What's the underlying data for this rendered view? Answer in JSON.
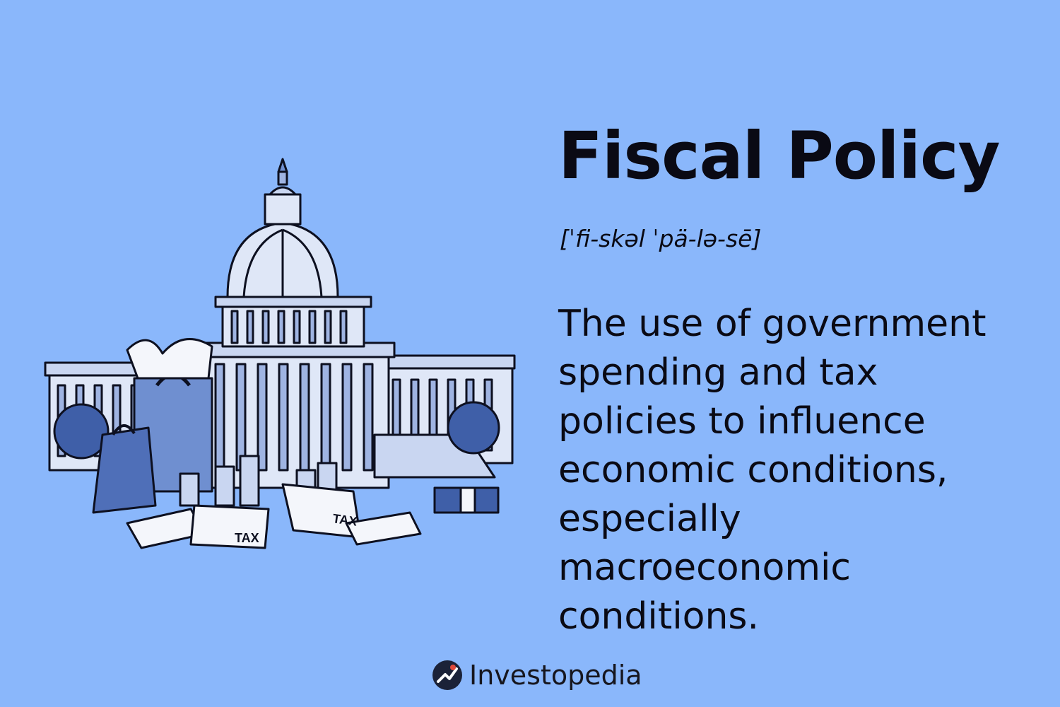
{
  "title": "Fiscal Policy",
  "pronunciation": "[ˈfi-skəl ˈpä-lə-sē]",
  "definition": "The use of government spending and tax policies to influence economic conditions, especially macroeconomic conditions.",
  "brand": {
    "name": "Investopedia",
    "logo_icon": "investopedia-logo-icon",
    "accent_color": "#e04a3c"
  },
  "illustration": {
    "icon": "capitol-building-icon",
    "tax_labels": [
      "TAX",
      "TAX"
    ]
  },
  "colors": {
    "background": "#8ab7fb",
    "text": "#0a0a14",
    "illustration_fill": "#6f8fd0",
    "illustration_light": "#dfe7f7",
    "illustration_dark": "#3f5fa8"
  }
}
